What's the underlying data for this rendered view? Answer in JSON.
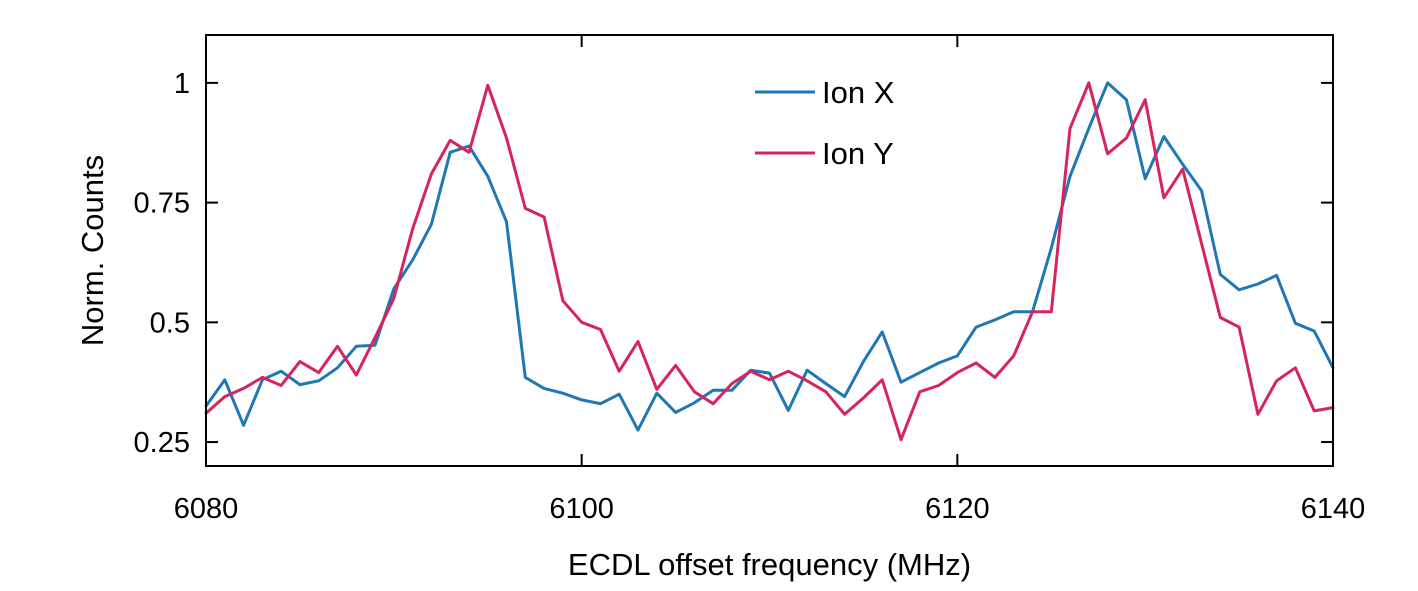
{
  "chart_data": {
    "type": "line",
    "title": "",
    "xlabel": "ECDL offset frequency (MHz)",
    "ylabel": "Norm. Counts",
    "xlim": [
      6080,
      6140
    ],
    "ylim": [
      0.2,
      1.1
    ],
    "xticks": [
      6080,
      6100,
      6120,
      6140
    ],
    "xtick_labels": [
      "6080",
      "6100",
      "6120",
      "6140"
    ],
    "yticks": [
      0.25,
      0.5,
      0.75,
      1
    ],
    "ytick_labels": [
      "0.25",
      "0.5",
      "0.75",
      "1"
    ],
    "grid": false,
    "legend_position": "top-center",
    "x": [
      6080,
      6081,
      6082,
      6083,
      6084,
      6085,
      6086,
      6087,
      6088,
      6089,
      6090,
      6091,
      6092,
      6093,
      6094,
      6095,
      6096,
      6097,
      6098,
      6099,
      6100,
      6101,
      6102,
      6103,
      6104,
      6105,
      6106,
      6107,
      6108,
      6109,
      6110,
      6111,
      6112,
      6113,
      6114,
      6115,
      6116,
      6117,
      6118,
      6119,
      6120,
      6121,
      6122,
      6123,
      6124,
      6125,
      6126,
      6127,
      6128,
      6129,
      6130,
      6131,
      6132,
      6133,
      6134,
      6135,
      6136,
      6137,
      6138,
      6139,
      6140
    ],
    "series": [
      {
        "name": "Ion X",
        "color": "#1f77b4",
        "values": [
          0.325,
          0.38,
          0.285,
          0.38,
          0.398,
          0.37,
          0.378,
          0.405,
          0.45,
          0.452,
          0.57,
          0.63,
          0.705,
          0.855,
          0.868,
          0.805,
          0.71,
          0.385,
          0.362,
          0.352,
          0.338,
          0.33,
          0.35,
          0.275,
          0.352,
          0.312,
          0.332,
          0.358,
          0.358,
          0.4,
          0.394,
          0.316,
          0.4,
          0.372,
          0.345,
          0.418,
          0.48,
          0.375,
          0.395,
          0.415,
          0.43,
          0.49,
          0.505,
          0.522,
          0.522,
          0.655,
          0.805,
          0.905,
          1.0,
          0.965,
          0.8,
          0.888,
          0.83,
          0.775,
          0.6,
          0.568,
          0.58,
          0.598,
          0.498,
          0.482,
          0.405
        ]
      },
      {
        "name": "Ion Y",
        "color": "#d6245f",
        "values": [
          0.31,
          0.345,
          0.362,
          0.385,
          0.368,
          0.418,
          0.395,
          0.45,
          0.39,
          0.468,
          0.55,
          0.695,
          0.81,
          0.88,
          0.855,
          0.995,
          0.885,
          0.738,
          0.72,
          0.545,
          0.5,
          0.485,
          0.398,
          0.46,
          0.36,
          0.41,
          0.355,
          0.33,
          0.372,
          0.398,
          0.38,
          0.398,
          0.378,
          0.355,
          0.308,
          0.342,
          0.38,
          0.255,
          0.355,
          0.368,
          0.395,
          0.415,
          0.385,
          0.43,
          0.522,
          0.522,
          0.905,
          1.0,
          0.852,
          0.885,
          0.965,
          0.76,
          0.82,
          0.665,
          0.51,
          0.49,
          0.308,
          0.378,
          0.405,
          0.315,
          0.322
        ]
      }
    ]
  }
}
